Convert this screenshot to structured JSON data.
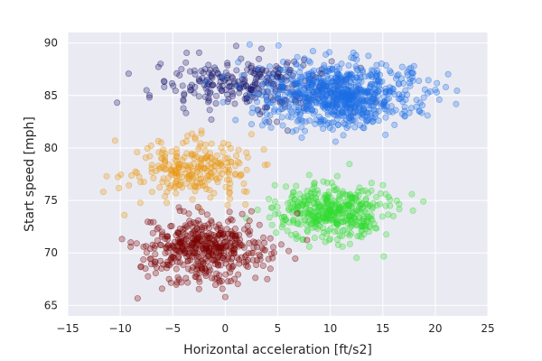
{
  "chart_data": {
    "type": "scatter",
    "xlabel": "Horizontal acceleration [ft/s2]",
    "ylabel": "Start speed [mph]",
    "xlim": [
      -15,
      25
    ],
    "ylim": [
      64,
      91
    ],
    "xticks": [
      -15,
      -10,
      -5,
      0,
      5,
      10,
      15,
      20,
      25
    ],
    "xtick_labels": [
      "−15",
      "−10",
      "−5",
      "0",
      "5",
      "10",
      "15",
      "20",
      "25"
    ],
    "yticks": [
      65,
      70,
      75,
      80,
      85,
      90
    ],
    "ytick_labels": [
      "65",
      "70",
      "75",
      "80",
      "85",
      "90"
    ],
    "grid": true,
    "background": "#eaeaf2",
    "grid_color": "#ffffff",
    "series": [
      {
        "color": "#191970",
        "center": [
          2,
          86
        ],
        "spread": [
          4.2,
          1.2
        ],
        "n": 260,
        "sample_points": [
          [
            -7.5,
            85.5
          ],
          [
            -5.8,
            86.3
          ],
          [
            -4,
            84.6
          ],
          [
            -2,
            86
          ],
          [
            0,
            86.5
          ],
          [
            2,
            85
          ],
          [
            3.5,
            87.4
          ],
          [
            5,
            86.8
          ],
          [
            6.5,
            86
          ],
          [
            7.5,
            88.4
          ],
          [
            1.5,
            88.5
          ]
        ]
      },
      {
        "color": "#1e6ee6",
        "center": [
          11,
          85
        ],
        "spread": [
          3.7,
          1.5
        ],
        "n": 750,
        "sample_points": [
          [
            6,
            83
          ],
          [
            8,
            86.5
          ],
          [
            9,
            82.5
          ],
          [
            10.3,
            84.8
          ],
          [
            12,
            85.5
          ],
          [
            13.3,
            86.8
          ],
          [
            14.5,
            84.5
          ],
          [
            16,
            85.6
          ],
          [
            17.8,
            86.7
          ],
          [
            21,
            85.8
          ],
          [
            10.5,
            80.6
          ]
        ]
      },
      {
        "color": "#e8960e",
        "center": [
          -3,
          78
        ],
        "spread": [
          2.6,
          1.4
        ],
        "n": 240,
        "sample_points": [
          [
            -11.3,
            77.3
          ],
          [
            -10.5,
            80.7
          ],
          [
            -8.4,
            79.6
          ],
          [
            -6.3,
            78
          ],
          [
            -4.7,
            76.8
          ],
          [
            -3,
            78.5
          ],
          [
            -1.5,
            76
          ],
          [
            0,
            79
          ],
          [
            1.5,
            77.5
          ],
          [
            2.5,
            81.3
          ],
          [
            -9.6,
            73.6
          ]
        ]
      },
      {
        "color": "#32dc32",
        "center": [
          10,
          74
        ],
        "spread": [
          2.6,
          1.3
        ],
        "n": 420,
        "sample_points": [
          [
            2,
            73.3
          ],
          [
            4.5,
            74.3
          ],
          [
            6.2,
            74.8
          ],
          [
            7.8,
            75.9
          ],
          [
            9,
            73.2
          ],
          [
            10.4,
            74
          ],
          [
            12,
            72.5
          ],
          [
            13.6,
            74.4
          ],
          [
            15.3,
            75.6
          ],
          [
            16,
            73.5
          ],
          [
            8,
            70.6
          ]
        ]
      },
      {
        "color": "#7a0000",
        "center": [
          -2,
          70.5
        ],
        "spread": [
          2.8,
          1.6
        ],
        "n": 460,
        "sample_points": [
          [
            -9,
            71
          ],
          [
            -7.6,
            68.5
          ],
          [
            -6,
            72
          ],
          [
            -4,
            70.3
          ],
          [
            -2.5,
            71.5
          ],
          [
            -1,
            69.3
          ],
          [
            0.5,
            70.6
          ],
          [
            2,
            68.8
          ],
          [
            4,
            67.5
          ],
          [
            4.5,
            69.5
          ],
          [
            0,
            65.8
          ]
        ]
      }
    ]
  }
}
